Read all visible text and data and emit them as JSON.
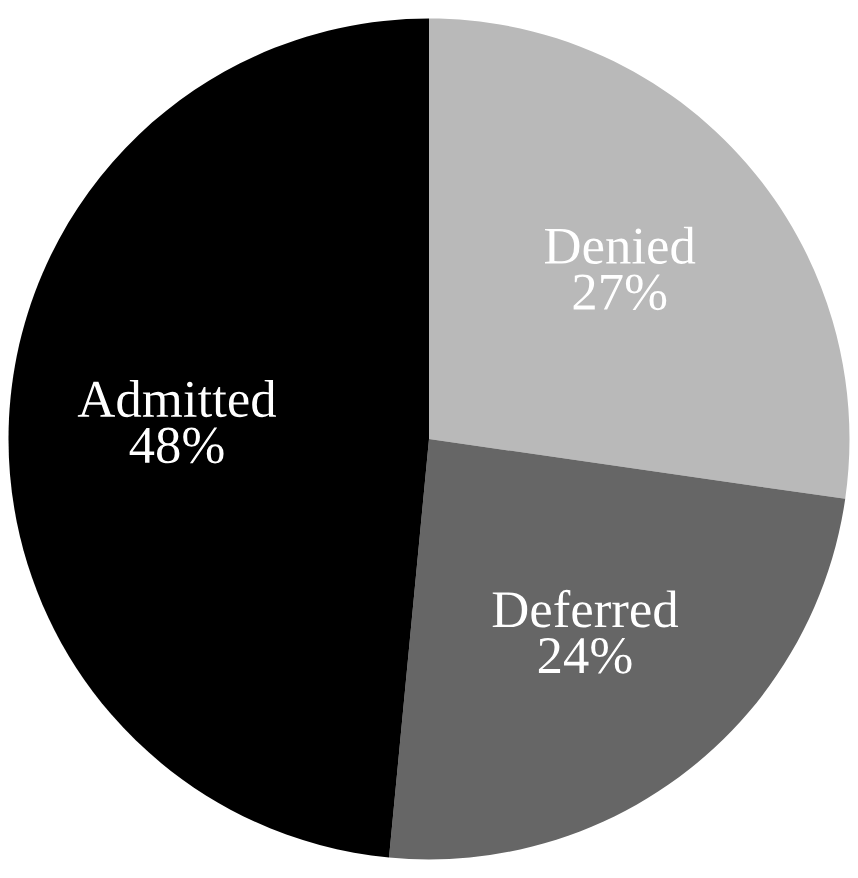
{
  "chart_data": {
    "type": "pie",
    "categories": [
      "Denied",
      "Deferred",
      "Admitted"
    ],
    "values": [
      27,
      24,
      48
    ],
    "value_labels": [
      "27%",
      "24%",
      "48%"
    ],
    "colors": [
      "#b9b9b9",
      "#666666",
      "#000000"
    ]
  }
}
